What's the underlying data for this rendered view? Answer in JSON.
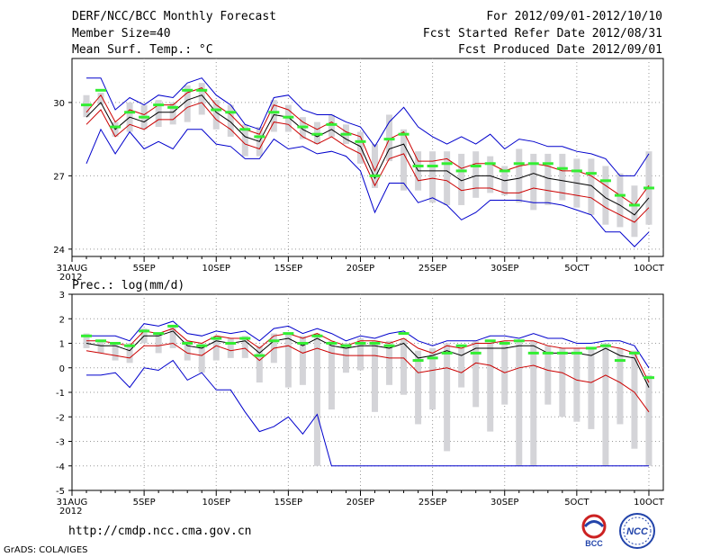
{
  "header": {
    "title": "DERF/NCC/BCC Monthly Forecast",
    "member_size": "Member Size=40",
    "variable": "Mean Surf. Temp.: °C",
    "forecast_period": "For 2012/09/01-2012/10/10",
    "refer_date": "Fcst Started Refer Date 2012/08/31",
    "produced_date": "Fcst Produced Date 2012/09/01"
  },
  "footer": {
    "url": "http://cmdp.ncc.cma.gov.cn",
    "credit": "GrADS: COLA/IGES",
    "logo_bcc": "BCC",
    "logo_ncc": "NCC"
  },
  "colors": {
    "mean": "#000000",
    "spread": "#cc0000",
    "minmax": "#0000cc",
    "obs": "#33ee33",
    "box": "#d4d4d8"
  },
  "chart_data": [
    {
      "type": "line",
      "title": "Mean Surf. Temp.: °C",
      "x_tick_labels": [
        "31AUG",
        "5SEP",
        "10SEP",
        "15SEP",
        "20SEP",
        "25SEP",
        "30SEP",
        "5OCT",
        "10OCT"
      ],
      "x_tick_days": [
        0,
        5,
        10,
        15,
        20,
        25,
        30,
        35,
        40
      ],
      "year_label": "2012",
      "ylim": [
        23.7,
        31.8
      ],
      "y_ticks": [
        24,
        27,
        30
      ],
      "x_days": [
        1,
        2,
        3,
        4,
        5,
        6,
        7,
        8,
        9,
        10,
        11,
        12,
        13,
        14,
        15,
        16,
        17,
        18,
        19,
        20,
        21,
        22,
        23,
        24,
        25,
        26,
        27,
        28,
        29,
        30,
        31,
        32,
        33,
        34,
        35,
        36,
        37,
        38,
        39,
        40
      ],
      "series": [
        {
          "name": "max",
          "values": [
            31.0,
            31.0,
            29.7,
            30.2,
            29.9,
            30.3,
            30.2,
            30.8,
            31.0,
            30.3,
            29.9,
            29.1,
            28.9,
            30.2,
            30.3,
            29.7,
            29.5,
            29.5,
            29.2,
            29.0,
            28.2,
            29.2,
            29.8,
            29.0,
            28.6,
            28.3,
            28.6,
            28.3,
            28.7,
            28.1,
            28.5,
            28.4,
            28.2,
            28.2,
            28.0,
            27.9,
            27.7,
            27.0,
            27.0,
            27.9
          ]
        },
        {
          "name": "upper",
          "values": [
            29.6,
            30.3,
            29.2,
            29.7,
            29.5,
            29.9,
            29.9,
            30.4,
            30.6,
            29.9,
            29.5,
            28.9,
            28.7,
            29.9,
            29.7,
            29.2,
            28.9,
            29.2,
            28.8,
            28.6,
            27.2,
            28.5,
            28.8,
            27.6,
            27.6,
            27.7,
            27.3,
            27.5,
            27.5,
            27.2,
            27.4,
            27.5,
            27.4,
            27.2,
            27.2,
            27.0,
            26.6,
            26.2,
            25.8,
            26.6
          ]
        },
        {
          "name": "mean",
          "values": [
            29.4,
            30.0,
            28.9,
            29.4,
            29.2,
            29.6,
            29.6,
            30.1,
            30.3,
            29.6,
            29.2,
            28.6,
            28.4,
            29.5,
            29.4,
            28.9,
            28.6,
            28.9,
            28.5,
            28.2,
            26.9,
            28.1,
            28.3,
            27.2,
            27.2,
            27.2,
            26.8,
            27.0,
            27.0,
            26.8,
            26.9,
            27.1,
            26.9,
            26.8,
            26.7,
            26.6,
            26.1,
            25.8,
            25.4,
            26.1
          ]
        },
        {
          "name": "lower",
          "values": [
            29.1,
            29.7,
            28.6,
            29.1,
            28.9,
            29.3,
            29.3,
            29.8,
            30.0,
            29.3,
            28.9,
            28.3,
            28.1,
            29.2,
            29.1,
            28.6,
            28.3,
            28.6,
            28.2,
            27.9,
            26.6,
            27.7,
            27.9,
            26.8,
            26.9,
            26.8,
            26.4,
            26.5,
            26.5,
            26.3,
            26.3,
            26.5,
            26.4,
            26.3,
            26.2,
            26.1,
            25.7,
            25.4,
            25.1,
            25.7
          ]
        },
        {
          "name": "min",
          "values": [
            27.5,
            28.9,
            27.9,
            28.8,
            28.1,
            28.4,
            28.1,
            28.9,
            28.9,
            28.3,
            28.2,
            27.7,
            27.7,
            28.5,
            28.1,
            28.2,
            27.9,
            28.0,
            27.8,
            27.2,
            25.5,
            26.7,
            26.7,
            25.9,
            26.1,
            25.8,
            25.2,
            25.5,
            26.0,
            26.0,
            26.0,
            25.9,
            25.9,
            25.8,
            25.6,
            25.4,
            24.7,
            24.7,
            24.1,
            24.7
          ]
        },
        {
          "name": "box_top",
          "values": [
            30.3,
            30.4,
            29.2,
            30.0,
            29.9,
            30.1,
            30.0,
            30.7,
            30.8,
            30.1,
            29.9,
            29.1,
            29.0,
            30.1,
            29.9,
            29.4,
            29.2,
            29.5,
            29.1,
            28.8,
            28.3,
            29.5,
            28.9,
            28.0,
            28.0,
            28.0,
            27.9,
            28.0,
            27.8,
            27.4,
            28.1,
            27.9,
            27.9,
            27.9,
            27.7,
            27.7,
            27.4,
            27.1,
            26.6,
            28.0
          ]
        },
        {
          "name": "box_bottom",
          "values": [
            29.4,
            29.9,
            28.6,
            28.8,
            28.9,
            29.0,
            29.1,
            29.2,
            29.5,
            28.9,
            28.6,
            27.8,
            27.8,
            28.8,
            28.8,
            28.5,
            28.3,
            28.6,
            28.3,
            27.5,
            26.5,
            27.6,
            26.4,
            26.4,
            25.9,
            25.8,
            25.8,
            26.1,
            26.3,
            26.2,
            25.9,
            25.6,
            25.8,
            26.0,
            25.7,
            25.4,
            25.0,
            24.9,
            24.5,
            25.0
          ]
        },
        {
          "name": "obs",
          "values": [
            29.9,
            30.5,
            29.0,
            29.6,
            29.4,
            29.9,
            29.8,
            30.5,
            30.5,
            29.7,
            29.6,
            28.9,
            28.6,
            29.6,
            29.4,
            29.0,
            28.7,
            29.1,
            28.7,
            28.4,
            27.0,
            28.5,
            28.7,
            27.4,
            27.4,
            27.5,
            27.2,
            27.4,
            27.5,
            27.2,
            27.5,
            27.5,
            27.5,
            27.3,
            27.2,
            27.1,
            26.8,
            26.2,
            25.8,
            26.5
          ]
        }
      ]
    },
    {
      "type": "line",
      "title": "Prec.: log(mm/d)",
      "x_tick_labels": [
        "31AUG",
        "5SEP",
        "10SEP",
        "15SEP",
        "20SEP",
        "25SEP",
        "30SEP",
        "5OCT",
        "10OCT"
      ],
      "x_tick_days": [
        0,
        5,
        10,
        15,
        20,
        25,
        30,
        35,
        40
      ],
      "year_label": "2012",
      "ylim": [
        -5,
        3
      ],
      "y_ticks": [
        -5,
        -4,
        -3,
        -2,
        -1,
        0,
        1,
        2,
        3
      ],
      "x_days": [
        1,
        2,
        3,
        4,
        5,
        6,
        7,
        8,
        9,
        10,
        11,
        12,
        13,
        14,
        15,
        16,
        17,
        18,
        19,
        20,
        21,
        22,
        23,
        24,
        25,
        26,
        27,
        28,
        29,
        30,
        31,
        32,
        33,
        34,
        35,
        36,
        37,
        38,
        39,
        40
      ],
      "series": [
        {
          "name": "max",
          "values": [
            1.3,
            1.3,
            1.3,
            1.1,
            1.8,
            1.7,
            1.9,
            1.4,
            1.3,
            1.5,
            1.4,
            1.5,
            1.1,
            1.6,
            1.7,
            1.4,
            1.6,
            1.4,
            1.1,
            1.3,
            1.2,
            1.4,
            1.5,
            1.1,
            0.9,
            1.1,
            1.1,
            1.1,
            1.3,
            1.3,
            1.2,
            1.4,
            1.2,
            1.2,
            1.0,
            1.0,
            1.1,
            1.1,
            0.9,
            0.0
          ]
        },
        {
          "name": "upper",
          "values": [
            1.1,
            1.1,
            1.0,
            0.9,
            1.5,
            1.4,
            1.6,
            1.1,
            1.0,
            1.3,
            1.2,
            1.2,
            0.8,
            1.3,
            1.4,
            1.2,
            1.4,
            1.1,
            0.9,
            1.1,
            1.1,
            1.0,
            1.2,
            0.8,
            0.6,
            0.9,
            0.8,
            1.0,
            1.0,
            1.1,
            1.1,
            1.1,
            0.9,
            0.8,
            0.8,
            0.8,
            0.9,
            0.8,
            0.6,
            -0.6
          ]
        },
        {
          "name": "mean",
          "values": [
            1.0,
            0.9,
            0.9,
            0.7,
            1.3,
            1.3,
            1.5,
            0.9,
            0.8,
            1.1,
            1.0,
            1.1,
            0.6,
            1.1,
            1.2,
            0.9,
            1.2,
            0.9,
            0.8,
            0.9,
            0.9,
            0.8,
            1.0,
            0.4,
            0.5,
            0.7,
            0.5,
            0.8,
            0.8,
            0.8,
            0.9,
            0.9,
            0.6,
            0.6,
            0.6,
            0.5,
            0.8,
            0.5,
            0.4,
            -0.8
          ]
        },
        {
          "name": "lower",
          "values": [
            0.7,
            0.6,
            0.5,
            0.4,
            0.9,
            0.9,
            1.0,
            0.6,
            0.5,
            0.9,
            0.7,
            0.8,
            0.3,
            0.8,
            0.9,
            0.6,
            0.8,
            0.6,
            0.5,
            0.5,
            0.5,
            0.4,
            0.4,
            -0.2,
            -0.1,
            0.0,
            -0.2,
            0.2,
            0.1,
            -0.2,
            0.0,
            0.1,
            -0.1,
            -0.2,
            -0.5,
            -0.6,
            -0.3,
            -0.6,
            -1.0,
            -1.8
          ]
        },
        {
          "name": "min",
          "values": [
            -0.3,
            -0.3,
            -0.2,
            -0.8,
            0.0,
            -0.1,
            0.3,
            -0.5,
            -0.2,
            -0.9,
            -0.9,
            -1.8,
            -2.6,
            -2.4,
            -2.0,
            -2.7,
            -1.9,
            -4.0,
            -4.0,
            -4.0,
            -4.0,
            -4.0,
            -4.0,
            -4.0,
            -4.0,
            -4.0,
            -4.0,
            -4.0,
            -4.0,
            -4.0,
            -4.0,
            -4.0,
            -4.0,
            -4.0,
            -4.0,
            -4.0,
            -4.0,
            -4.0,
            -4.0,
            -4.0
          ]
        },
        {
          "name": "box_top",
          "values": [
            1.4,
            1.1,
            1.0,
            1.0,
            1.6,
            1.4,
            1.7,
            1.1,
            1.0,
            1.3,
            1.2,
            1.3,
            0.9,
            1.4,
            1.4,
            1.3,
            1.4,
            1.1,
            1.0,
            1.2,
            1.1,
            1.1,
            1.2,
            0.7,
            0.8,
            1.0,
            0.8,
            1.1,
            1.0,
            1.1,
            1.1,
            1.1,
            0.9,
            0.8,
            0.8,
            0.8,
            1.0,
            0.8,
            0.7,
            -0.3
          ]
        },
        {
          "name": "box_bottom",
          "values": [
            0.8,
            0.6,
            0.3,
            0.2,
            1.0,
            0.6,
            0.8,
            0.3,
            -0.2,
            0.3,
            0.4,
            0.4,
            -0.6,
            0.2,
            -0.8,
            -0.7,
            -4.0,
            -1.7,
            -0.2,
            -0.1,
            -1.8,
            -0.7,
            -1.1,
            -2.3,
            -1.7,
            -3.4,
            -0.8,
            -1.6,
            -2.6,
            -1.5,
            -4.0,
            -4.0,
            -1.5,
            -2.0,
            -2.2,
            -2.5,
            -4.0,
            -2.3,
            -3.3,
            -4.0
          ]
        },
        {
          "name": "obs",
          "values": [
            1.3,
            1.1,
            1.0,
            0.9,
            1.5,
            1.4,
            1.7,
            1.0,
            0.9,
            1.2,
            1.0,
            1.2,
            0.5,
            1.1,
            1.4,
            1.0,
            1.3,
            1.0,
            0.9,
            1.0,
            1.0,
            0.9,
            1.4,
            0.3,
            0.4,
            0.6,
            0.9,
            0.6,
            1.1,
            1.0,
            1.1,
            0.6,
            0.6,
            0.6,
            0.6,
            0.8,
            0.9,
            0.3,
            0.6,
            -0.4
          ]
        }
      ]
    }
  ]
}
